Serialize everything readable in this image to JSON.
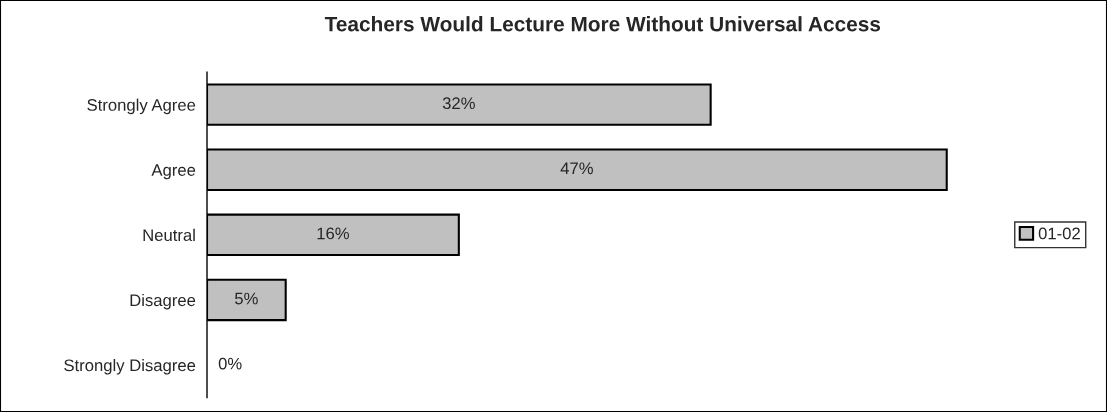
{
  "chart_data": {
    "type": "bar",
    "orientation": "horizontal",
    "title": "Teachers Would Lecture More Without Universal Access",
    "categories": [
      "Strongly Agree",
      "Agree",
      "Neutral",
      "Disagree",
      "Strongly Disagree"
    ],
    "series": [
      {
        "name": "01-02",
        "color": "#c0c0c0",
        "values": [
          32,
          47,
          16,
          5,
          0
        ],
        "value_labels": [
          "32%",
          "47%",
          "16%",
          "5%",
          "0%"
        ]
      }
    ],
    "tick_labels": "y",
    "legend": "right",
    "grid": false
  }
}
